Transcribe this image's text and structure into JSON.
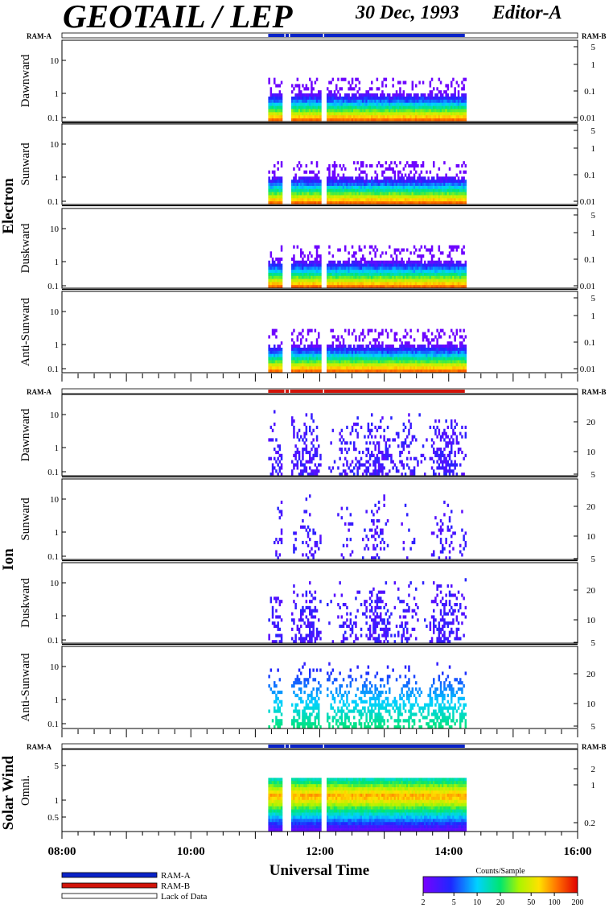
{
  "header": {
    "title": "GEOTAIL / LEP",
    "date": "30 Dec, 1993",
    "editor": "Editor-A"
  },
  "ram_labels": {
    "left": "RAM-A",
    "right": "RAM-B"
  },
  "groups": [
    {
      "label": "Electron"
    },
    {
      "label": "Ion"
    },
    {
      "label": "Solar Wind"
    }
  ],
  "panels": [
    {
      "label": "Dawnward",
      "left_ticks": [
        "10",
        "1",
        "0.1"
      ],
      "right_ticks": [
        "5",
        "1",
        "0.1",
        "0.01"
      ]
    },
    {
      "label": "Sunward",
      "left_ticks": [
        "10",
        "1",
        "0.1"
      ],
      "right_ticks": [
        "5",
        "1",
        "0.1",
        "0.01"
      ]
    },
    {
      "label": "Duskward",
      "left_ticks": [
        "10",
        "1",
        "0.1"
      ],
      "right_ticks": [
        "5",
        "1",
        "0.1",
        "0.01"
      ]
    },
    {
      "label": "Anti-Sunward",
      "left_ticks": [
        "10",
        "1",
        "0.1"
      ],
      "right_ticks": [
        "5",
        "1",
        "0.1",
        "0.01"
      ]
    },
    {
      "label": "Dawnward",
      "left_ticks": [
        "10",
        "1",
        "0.1"
      ],
      "right_ticks": [
        "20",
        "10",
        "5"
      ]
    },
    {
      "label": "Sunward",
      "left_ticks": [
        "10",
        "1",
        "0.1"
      ],
      "right_ticks": [
        "20",
        "10",
        "5"
      ]
    },
    {
      "label": "Duskward",
      "left_ticks": [
        "10",
        "1",
        "0.1"
      ],
      "right_ticks": [
        "20",
        "10",
        "5"
      ]
    },
    {
      "label": "Anti-Sunward",
      "left_ticks": [
        "10",
        "1",
        "0.1"
      ],
      "right_ticks": [
        "20",
        "10",
        "5"
      ]
    },
    {
      "label": "Omni.",
      "left_ticks": [
        "5",
        "1",
        "0.5"
      ],
      "right_ticks": [
        "2",
        "1",
        "0.2"
      ]
    }
  ],
  "chart_data": {
    "type": "heatmap",
    "xlabel": "Universal Time",
    "x_ticks": [
      "08:00",
      "10:00",
      "12:00",
      "14:00",
      "16:00"
    ],
    "x_range_hours": [
      8,
      16
    ],
    "data_coverage_hours": [
      11.2,
      14.25
    ],
    "data_gaps_hours": [
      11.45,
      11.52,
      12.05
    ],
    "ram_bars": [
      {
        "group": "Electron",
        "mode": "RAM-A",
        "color": "#0a23c8"
      },
      {
        "group": "Ion",
        "mode": "RAM-B",
        "color": "#d2140a"
      },
      {
        "group": "Solar Wind",
        "mode": "RAM-A",
        "color": "#0a23c8"
      }
    ],
    "colorbar": {
      "title": "Counts/Sample",
      "ticks": [
        "2",
        "5",
        "10",
        "20",
        "50",
        "100",
        "200"
      ],
      "scale": "log",
      "range": [
        2,
        200
      ]
    }
  },
  "legend": {
    "items": [
      {
        "label": "RAM-A",
        "color": "#0a23c8"
      },
      {
        "label": "RAM-B",
        "color": "#d2140a"
      },
      {
        "label": "Lack of Data",
        "color": "#ffffff"
      }
    ]
  }
}
